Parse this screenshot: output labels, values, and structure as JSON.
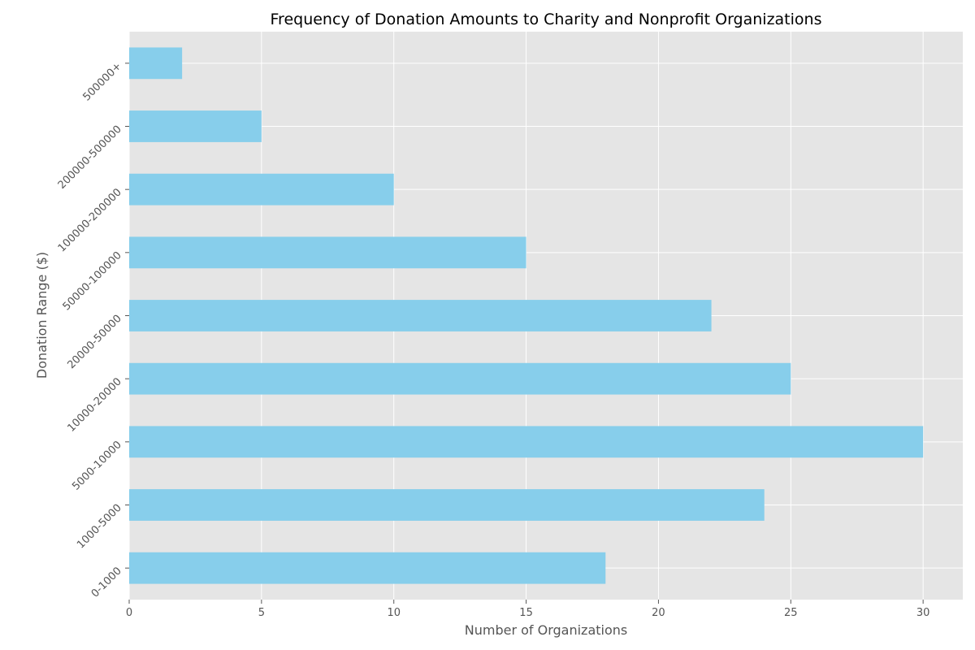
{
  "chart_data": {
    "type": "bar",
    "orientation": "horizontal",
    "title": "Frequency of Donation Amounts to Charity and Nonprofit Organizations",
    "xlabel": "Number of Organizations",
    "ylabel": "Donation Range ($)",
    "categories": [
      "0-1000",
      "1000-5000",
      "5000-10000",
      "10000-20000",
      "20000-50000",
      "50000-100000",
      "100000-200000",
      "200000-500000",
      "500000+"
    ],
    "values": [
      18,
      24,
      30,
      25,
      22,
      15,
      10,
      5,
      2
    ],
    "xlim": [
      0,
      31.5
    ],
    "xticks": [
      0,
      5,
      10,
      15,
      20,
      25,
      30
    ],
    "bar_color": "#87CEEB",
    "plot_background": "#E5E5E5",
    "grid": true,
    "grid_color": "#FFFFFF"
  }
}
